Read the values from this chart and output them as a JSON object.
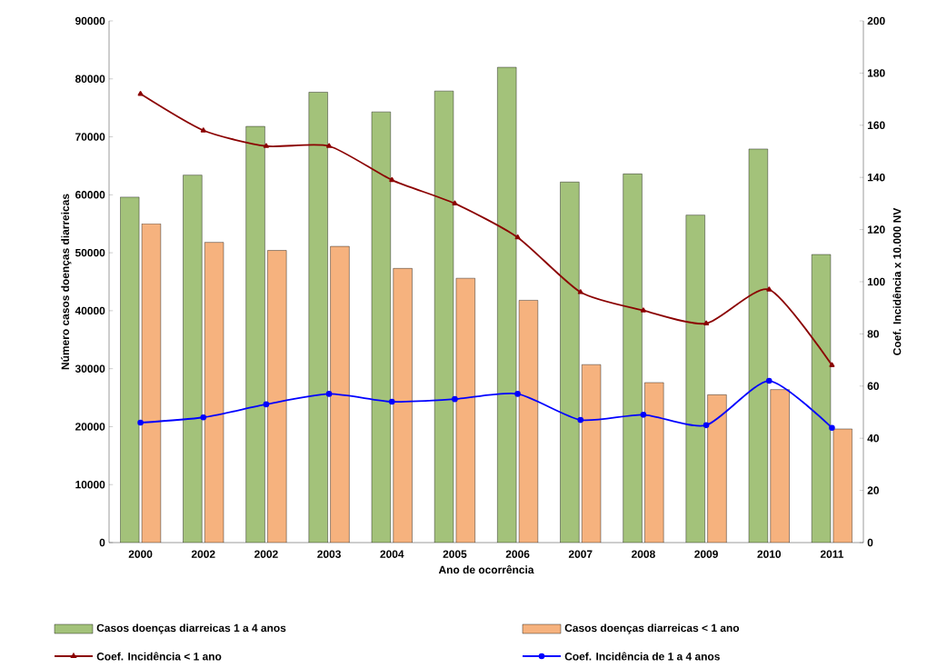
{
  "chart_data": {
    "type": "bar",
    "xlabel": "Ano de ocorrência",
    "ylabel": "Número casos doenças diarreicas",
    "y2label": "Coef. Incidência x 10.000 NV",
    "categories": [
      "2000",
      "2002",
      "2002",
      "2003",
      "2004",
      "2005",
      "2006",
      "2007",
      "2008",
      "2009",
      "2010",
      "2011"
    ],
    "series": [
      {
        "name": "Casos doenças diarreicas 1 a 4 anos",
        "color": "#a3c27a",
        "values": [
          59600,
          63400,
          71800,
          77700,
          74300,
          77900,
          82000,
          62200,
          63600,
          56500,
          67900,
          49700
        ]
      },
      {
        "name": "Casos doenças diarreicas < 1 ano",
        "color": "#f6b27e",
        "values": [
          55000,
          51800,
          50400,
          51100,
          47300,
          45600,
          41800,
          30700,
          27600,
          25500,
          26400,
          19600
        ]
      },
      {
        "name": "Coef. Incidência < 1 ano",
        "type": "line",
        "axis": "y2",
        "color": "#8b0000",
        "marker": "triangle",
        "values": [
          172,
          158,
          152,
          152,
          139,
          130,
          117,
          96,
          89,
          84,
          97,
          68
        ]
      },
      {
        "name": "Coef. Incidência de 1 a 4 anos",
        "type": "line",
        "axis": "y2",
        "color": "#0000ff",
        "marker": "circle",
        "values": [
          46,
          48,
          53,
          57,
          54,
          55,
          57,
          47,
          49,
          45,
          62,
          44
        ]
      }
    ],
    "ylim": [
      0,
      90000
    ],
    "yticks": [
      0,
      10000,
      20000,
      30000,
      40000,
      50000,
      60000,
      70000,
      80000,
      90000
    ],
    "y2lim": [
      0,
      200
    ],
    "y2ticks": [
      0,
      20,
      40,
      60,
      80,
      100,
      120,
      140,
      160,
      180,
      200
    ],
    "legend": "bottom"
  }
}
